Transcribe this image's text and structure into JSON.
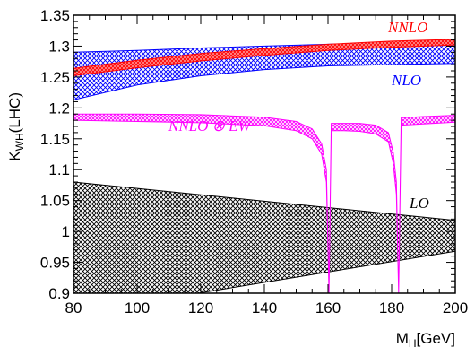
{
  "chart_data": {
    "type": "area",
    "title": "",
    "xlabel": "M_H[GeV]",
    "xlabel_main": "M",
    "xlabel_sub": "H",
    "xlabel_unit": "[GeV]",
    "ylabel": "K_WH(LHC)",
    "ylabel_main": "K",
    "ylabel_sub": "WH",
    "ylabel_tail": "(LHC)",
    "xlim": [
      80,
      200
    ],
    "ylim": [
      0.9,
      1.35
    ],
    "x_ticks": [
      80,
      100,
      120,
      140,
      160,
      180,
      200
    ],
    "y_ticks": [
      0.9,
      0.95,
      1,
      1.05,
      1.1,
      1.15,
      1.2,
      1.25,
      1.3,
      1.35
    ],
    "x_tick_labels": [
      "80",
      "100",
      "120",
      "140",
      "160",
      "180",
      "200"
    ],
    "y_tick_labels": [
      "0.9",
      "0.95",
      "1",
      "1.05",
      "1.1",
      "1.15",
      "1.2",
      "1.25",
      "1.3",
      "1.35"
    ],
    "grid": false,
    "series": [
      {
        "name": "NNLO",
        "color": "#ff0000",
        "x": [
          80,
          100,
          120,
          140,
          160,
          180,
          200
        ],
        "lower": [
          1.252,
          1.265,
          1.276,
          1.285,
          1.293,
          1.298,
          1.302
        ],
        "upper": [
          1.264,
          1.277,
          1.288,
          1.296,
          1.303,
          1.308,
          1.311
        ]
      },
      {
        "name": "NLO",
        "color": "#0000ff",
        "x": [
          80,
          100,
          120,
          140,
          160,
          180,
          200
        ],
        "lower": [
          1.213,
          1.237,
          1.252,
          1.262,
          1.268,
          1.27,
          1.272
        ],
        "upper": [
          1.29,
          1.293,
          1.297,
          1.3,
          1.303,
          1.306,
          1.309
        ]
      },
      {
        "name": "NNLO ⊗ EW",
        "color": "#ff00ff",
        "x": [
          80,
          100,
          120,
          140,
          150,
          155,
          158,
          159.5,
          160.3,
          161,
          165,
          170,
          175,
          179,
          180.5,
          181.5,
          182.2,
          183,
          190,
          200
        ],
        "lower": [
          1.18,
          1.178,
          1.176,
          1.171,
          1.163,
          1.15,
          1.125,
          1.08,
          0.9,
          1.163,
          1.163,
          1.162,
          1.158,
          1.145,
          1.11,
          1.06,
          0.9,
          1.172,
          1.174,
          1.177
        ],
        "upper": [
          1.19,
          1.19,
          1.189,
          1.185,
          1.178,
          1.166,
          1.142,
          1.1,
          0.9,
          1.175,
          1.175,
          1.175,
          1.172,
          1.16,
          1.128,
          1.08,
          0.9,
          1.184,
          1.186,
          1.188
        ]
      },
      {
        "name": "LO",
        "color": "#000000",
        "x": [
          80,
          200
        ],
        "lower": [
          0.867,
          0.968
        ],
        "upper": [
          1.08,
          1.018
        ]
      }
    ]
  }
}
